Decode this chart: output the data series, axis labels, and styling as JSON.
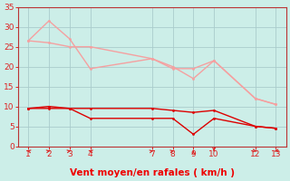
{
  "title": "",
  "xlabel": "Vent moyen/en rafales ( km/h )",
  "bg_color": "#cceee8",
  "grid_color": "#aacccc",
  "xlim": [
    0.5,
    13.5
  ],
  "ylim": [
    0,
    35
  ],
  "yticks": [
    0,
    5,
    10,
    15,
    20,
    25,
    30,
    35
  ],
  "xticks": [
    1,
    2,
    3,
    4,
    7,
    8,
    9,
    10,
    12,
    13
  ],
  "line1_x": [
    1,
    2,
    3,
    4,
    7,
    8,
    9,
    10,
    12,
    13
  ],
  "line1_y": [
    26.5,
    31.5,
    27.0,
    19.5,
    22.0,
    20.0,
    17.0,
    21.5,
    12.0,
    10.5
  ],
  "line2_x": [
    1,
    2,
    3,
    4,
    7,
    8,
    9,
    10,
    12,
    13
  ],
  "line2_y": [
    26.5,
    26.0,
    25.0,
    25.0,
    22.0,
    19.5,
    19.5,
    21.5,
    12.0,
    10.5
  ],
  "line3_x": [
    1,
    2,
    3,
    4,
    7,
    8,
    9,
    10,
    12,
    13
  ],
  "line3_y": [
    9.5,
    10.0,
    9.5,
    9.5,
    9.5,
    9.0,
    8.5,
    9.0,
    5.0,
    4.5
  ],
  "line4_x": [
    1,
    2,
    3,
    4,
    7,
    8,
    9,
    10,
    12,
    13
  ],
  "line4_y": [
    9.5,
    9.5,
    9.5,
    7.0,
    7.0,
    7.0,
    3.0,
    7.0,
    5.0,
    4.5
  ],
  "color_light": "#f5a0a0",
  "color_dark": "#dd0000",
  "xlabel_color": "#ee0000",
  "tick_color": "#dd2222",
  "spine_color": "#bb3333",
  "arrow_angles": [
    225,
    135,
    135,
    225,
    135,
    135,
    180,
    0,
    45,
    315
  ]
}
